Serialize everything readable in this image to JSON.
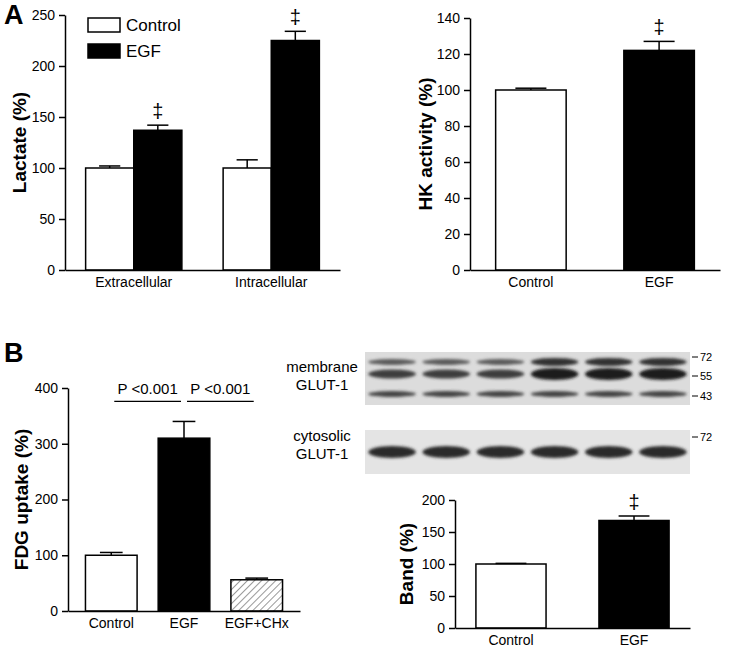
{
  "panel_labels": [
    "A",
    "B"
  ],
  "chart_data": [
    {
      "type": "bar",
      "y_label": "Lactate (%)",
      "categories": [
        "Extracellular",
        "Intracellular"
      ],
      "series": [
        {
          "name": "Control",
          "color": "#ffffff",
          "values": [
            100,
            100
          ],
          "errors": [
            2,
            8
          ],
          "annotations": [
            null,
            null
          ]
        },
        {
          "name": "EGF",
          "color": "#000000",
          "values": [
            137,
            225
          ],
          "errors": [
            5,
            9
          ],
          "annotations": [
            "‡",
            "‡"
          ]
        }
      ],
      "ylim": [
        0,
        250
      ],
      "yticks": [
        0,
        50,
        100,
        150,
        200,
        250
      ],
      "legend": "top-left"
    },
    {
      "type": "bar",
      "y_label": "HK activity (%)",
      "categories": [
        "Control",
        "EGF"
      ],
      "values": [
        100,
        122
      ],
      "errors": [
        1,
        5
      ],
      "colors": [
        "#ffffff",
        "#000000"
      ],
      "annotations": [
        null,
        "‡"
      ],
      "ylim": [
        0,
        140
      ],
      "yticks": [
        0,
        20,
        40,
        60,
        80,
        100,
        120,
        140
      ]
    },
    {
      "type": "bar",
      "y_label": "FDG uptake (%)",
      "categories": [
        "Control",
        "EGF",
        "EGF+CHx"
      ],
      "values": [
        100,
        310,
        56
      ],
      "errors": [
        5,
        30,
        3
      ],
      "colors": [
        "#ffffff",
        "#000000",
        "#7f7f7f"
      ],
      "comparisons": [
        {
          "from": "Control",
          "to": "EGF",
          "label": "P <0.001"
        },
        {
          "from": "EGF",
          "to": "EGF+CHx",
          "label": "P <0.001"
        }
      ],
      "ylim": [
        0,
        400
      ],
      "yticks": [
        0,
        100,
        200,
        300,
        400
      ]
    },
    {
      "type": "bar",
      "y_label": "Band (%)",
      "categories": [
        "Control",
        "EGF"
      ],
      "values": [
        100,
        168
      ],
      "errors": [
        1,
        7
      ],
      "colors": [
        "#ffffff",
        "#000000"
      ],
      "annotations": [
        null,
        "‡"
      ],
      "ylim": [
        0,
        200
      ],
      "yticks": [
        0,
        50,
        100,
        150,
        200
      ]
    }
  ],
  "blot": {
    "membrane": {
      "label": [
        "membrane",
        "GLUT-1"
      ],
      "markers": [
        72,
        55,
        43
      ]
    },
    "cytosolic": {
      "label": [
        "cytosolic",
        "GLUT-1"
      ],
      "markers": [
        72
      ]
    }
  }
}
